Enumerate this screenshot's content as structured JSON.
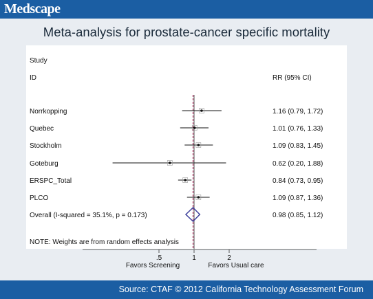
{
  "header": {
    "logo_text": "Medscape",
    "bar_color": "#1b5ea3"
  },
  "footer": {
    "source_text": "Source: CTAF © 2012 California Technology Assessment Forum",
    "bar_color": "#1b5ea3"
  },
  "chart_data": {
    "type": "forest",
    "title": "Meta-analysis for prostate-cancer specific mortality",
    "column_headers": {
      "study_line1": "Study",
      "study_line2": "ID",
      "effect": "RR (95% CI)"
    },
    "x_scale": "log",
    "null_value": 1,
    "xticks": [
      0.5,
      1,
      2
    ],
    "xtick_labels": [
      ".5",
      "1",
      "2"
    ],
    "favors_left": "Favors Screening",
    "favors_right": "Favors Usual care",
    "studies": [
      {
        "name": "Norrkopping",
        "rr": 1.16,
        "lo": 0.79,
        "hi": 1.72,
        "label": "1.16 (0.79, 1.72)"
      },
      {
        "name": "Quebec",
        "rr": 1.01,
        "lo": 0.76,
        "hi": 1.33,
        "label": "1.01 (0.76, 1.33)"
      },
      {
        "name": "Stockholm",
        "rr": 1.09,
        "lo": 0.83,
        "hi": 1.45,
        "label": "1.09 (0.83, 1.45)"
      },
      {
        "name": "Goteburg",
        "rr": 0.62,
        "lo": 0.2,
        "hi": 1.88,
        "label": "0.62 (0.20, 1.88)"
      },
      {
        "name": "ERSPC_Total",
        "rr": 0.84,
        "lo": 0.73,
        "hi": 0.95,
        "label": "0.84 (0.73, 0.95)"
      },
      {
        "name": "PLCO",
        "rr": 1.09,
        "lo": 0.87,
        "hi": 1.36,
        "label": "1.09 (0.87, 1.36)"
      }
    ],
    "overall": {
      "name": "Overall  (I-squared = 35.1%, p = 0.173)",
      "rr": 0.98,
      "lo": 0.85,
      "hi": 1.12,
      "label": "0.98 (0.85, 1.12)"
    },
    "note": "NOTE: Weights are from random effects analysis",
    "colors": {
      "diamond": "#3b3e9a",
      "null_line": "#555555",
      "overall_line": "#b03060"
    }
  }
}
